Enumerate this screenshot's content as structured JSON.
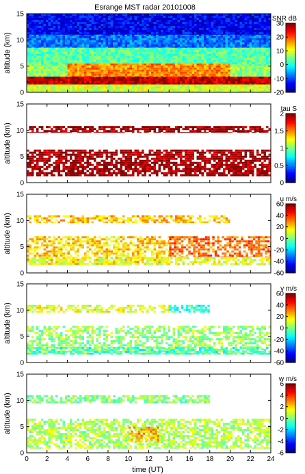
{
  "title": "Esrange MST radar 20101008",
  "xlabel": "time (UT)",
  "chart_data": [
    {
      "type": "heatmap",
      "ylabel": "altitude (km)",
      "xlim": [
        0,
        24
      ],
      "ylim": [
        0,
        15
      ],
      "x_ticks": [
        "0",
        "2",
        "4",
        "6",
        "8",
        "10",
        "12",
        "14",
        "16",
        "18",
        "20",
        "22",
        "24"
      ],
      "y_ticks": [
        "0",
        "5",
        "10",
        "15"
      ],
      "colorbar": {
        "label": "SNR dB",
        "range": [
          -20,
          30
        ],
        "ticks": [
          "30",
          "20",
          "10",
          "0",
          "-10",
          "-20"
        ]
      },
      "layers": [
        {
          "alt": [
            0,
            15
          ],
          "t": [
            0,
            24
          ],
          "value": 6
        },
        {
          "alt": [
            8.5,
            15
          ],
          "t": [
            0,
            24
          ],
          "value": -8
        },
        {
          "alt": [
            11,
            15
          ],
          "t": [
            0,
            24
          ],
          "value": -14
        },
        {
          "alt": [
            5,
            8.5
          ],
          "t": [
            0,
            24
          ],
          "value": 3
        },
        {
          "alt": [
            3,
            5.5
          ],
          "t": [
            4,
            20
          ],
          "value": 17
        },
        {
          "alt": [
            1.5,
            3
          ],
          "t": [
            0,
            24
          ],
          "value": 27
        },
        {
          "alt": [
            0.3,
            1.5
          ],
          "t": [
            0,
            24
          ],
          "value": 9
        }
      ],
      "fill_fraction": 1.0
    },
    {
      "type": "heatmap",
      "ylabel": "altitude (km)",
      "xlim": [
        0,
        24
      ],
      "ylim": [
        0,
        15
      ],
      "x_ticks": [
        "0",
        "2",
        "4",
        "6",
        "8",
        "10",
        "12",
        "14",
        "16",
        "18",
        "20",
        "22",
        "24"
      ],
      "y_ticks": [
        "0",
        "5",
        "10",
        "15"
      ],
      "colorbar": {
        "label": "tau S",
        "range": [
          0,
          2
        ],
        "ticks": [
          "2",
          "1.5",
          "1",
          "0.5",
          "0"
        ]
      },
      "layers": [
        {
          "alt": [
            9.5,
            10.8
          ],
          "t": [
            0,
            24
          ],
          "value": 1.95
        },
        {
          "alt": [
            1.2,
            6.3
          ],
          "t": [
            0,
            24
          ],
          "value": 1.95
        }
      ],
      "fill_fraction": 0.75
    },
    {
      "type": "heatmap",
      "ylabel": "altitude (km)",
      "xlim": [
        0,
        24
      ],
      "ylim": [
        0,
        15
      ],
      "x_ticks": [
        "0",
        "2",
        "4",
        "6",
        "8",
        "10",
        "12",
        "14",
        "16",
        "18",
        "20",
        "22",
        "24"
      ],
      "y_ticks": [
        "0",
        "5",
        "10",
        "15"
      ],
      "colorbar": {
        "label": "u m/s",
        "range": [
          -60,
          60
        ],
        "ticks": [
          "60",
          "40",
          "20",
          "0",
          "-20",
          "-40",
          "-60"
        ]
      },
      "layers": [
        {
          "alt": [
            9.5,
            11
          ],
          "t": [
            0,
            20
          ],
          "value": 22
        },
        {
          "alt": [
            1.5,
            7
          ],
          "t": [
            0,
            14
          ],
          "value": 20
        },
        {
          "alt": [
            3,
            7
          ],
          "t": [
            14,
            24
          ],
          "value": 33
        },
        {
          "alt": [
            1.5,
            3
          ],
          "t": [
            0,
            24
          ],
          "value": 12
        }
      ],
      "fill_fraction": 0.6
    },
    {
      "type": "heatmap",
      "ylabel": "altitude (km)",
      "xlim": [
        0,
        24
      ],
      "ylim": [
        0,
        15
      ],
      "x_ticks": [
        "0",
        "2",
        "4",
        "6",
        "8",
        "10",
        "12",
        "14",
        "16",
        "18",
        "20",
        "22",
        "24"
      ],
      "y_ticks": [
        "0",
        "5",
        "10",
        "15"
      ],
      "colorbar": {
        "label": "v m/s",
        "range": [
          -60,
          60
        ],
        "ticks": [
          "60",
          "40",
          "20",
          "0",
          "-20",
          "-40",
          "-60"
        ]
      },
      "layers": [
        {
          "alt": [
            9.5,
            11
          ],
          "t": [
            0,
            14
          ],
          "value": 12
        },
        {
          "alt": [
            9.5,
            11
          ],
          "t": [
            14,
            18
          ],
          "value": -10
        },
        {
          "alt": [
            1.5,
            7
          ],
          "t": [
            0,
            24
          ],
          "value": 3
        },
        {
          "alt": [
            1.5,
            3
          ],
          "t": [
            0,
            24
          ],
          "value": -8
        }
      ],
      "fill_fraction": 0.55
    },
    {
      "type": "heatmap",
      "ylabel": "altitude (km)",
      "xlim": [
        0,
        24
      ],
      "ylim": [
        0,
        15
      ],
      "x_ticks": [
        "0",
        "2",
        "4",
        "6",
        "8",
        "10",
        "12",
        "14",
        "16",
        "18",
        "20",
        "22",
        "24"
      ],
      "y_ticks": [
        "0",
        "5",
        "10",
        "15"
      ],
      "colorbar": {
        "label": "w m/s",
        "range": [
          -6,
          6
        ],
        "ticks": [
          "6",
          "4",
          "2",
          "0",
          "-2",
          "-4",
          "-6"
        ]
      },
      "layers": [
        {
          "alt": [
            9.5,
            11
          ],
          "t": [
            0,
            18
          ],
          "value": 0
        },
        {
          "alt": [
            0.8,
            6.5
          ],
          "t": [
            0,
            24
          ],
          "value": 0.6
        },
        {
          "alt": [
            2,
            5
          ],
          "t": [
            10,
            13
          ],
          "value": 2.5
        }
      ],
      "fill_fraction": 0.65
    }
  ]
}
